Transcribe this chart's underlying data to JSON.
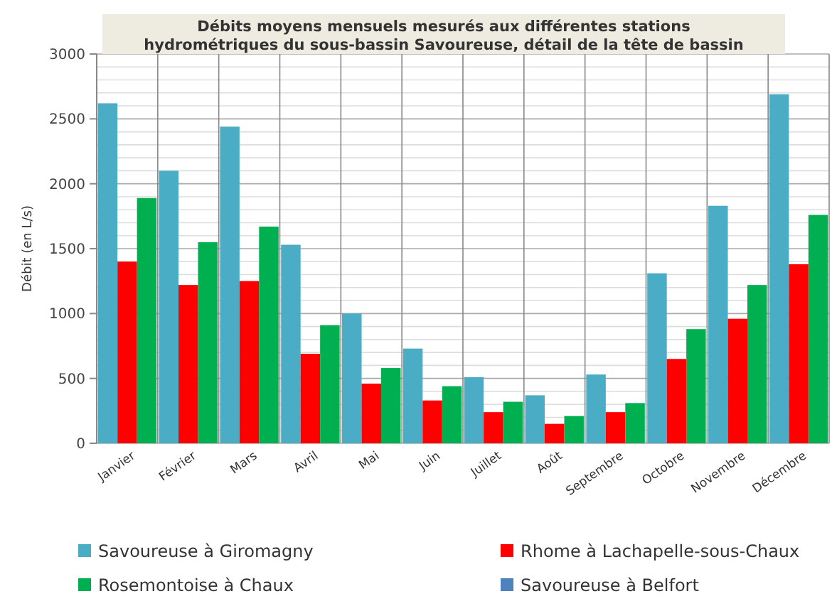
{
  "chart_data": {
    "type": "bar",
    "title": "Débits moyens mensuels mesurés aux différentes stations\nhydrométriques du sous-bassin Savoureuse, détail de la tête de bassin",
    "ylabel": "Débit (en L/s)",
    "categories": [
      "Janvier",
      "Février",
      "Mars",
      "Avril",
      "Mai",
      "Juin",
      "Juillet",
      "Août",
      "Septembre",
      "Octobre",
      "Novembre",
      "Décembre"
    ],
    "series": [
      {
        "name": "Savoureuse à Giromagny",
        "color": "#4bacc6",
        "values": [
          2620,
          2100,
          2440,
          1530,
          1000,
          730,
          510,
          370,
          530,
          1310,
          1830,
          2690
        ]
      },
      {
        "name": "Rhome à Lachapelle-sous-Chaux",
        "color": "#ff0000",
        "values": [
          1400,
          1220,
          1250,
          690,
          460,
          330,
          240,
          150,
          240,
          650,
          960,
          1380
        ]
      },
      {
        "name": "Rosemontoise à Chaux",
        "color": "#00b050",
        "values": [
          1890,
          1550,
          1670,
          910,
          580,
          440,
          320,
          210,
          310,
          880,
          1220,
          1760
        ]
      },
      {
        "name": "Savoureuse à Belfort",
        "color": "#4f81bd",
        "values": [
          null,
          null,
          null,
          null,
          null,
          null,
          null,
          null,
          null,
          null,
          null,
          null
        ]
      }
    ],
    "ylim": [
      0,
      3000
    ],
    "yticks": [
      0,
      500,
      1000,
      1500,
      2000,
      2500,
      3000
    ],
    "grid": true,
    "legend": "bottom"
  }
}
